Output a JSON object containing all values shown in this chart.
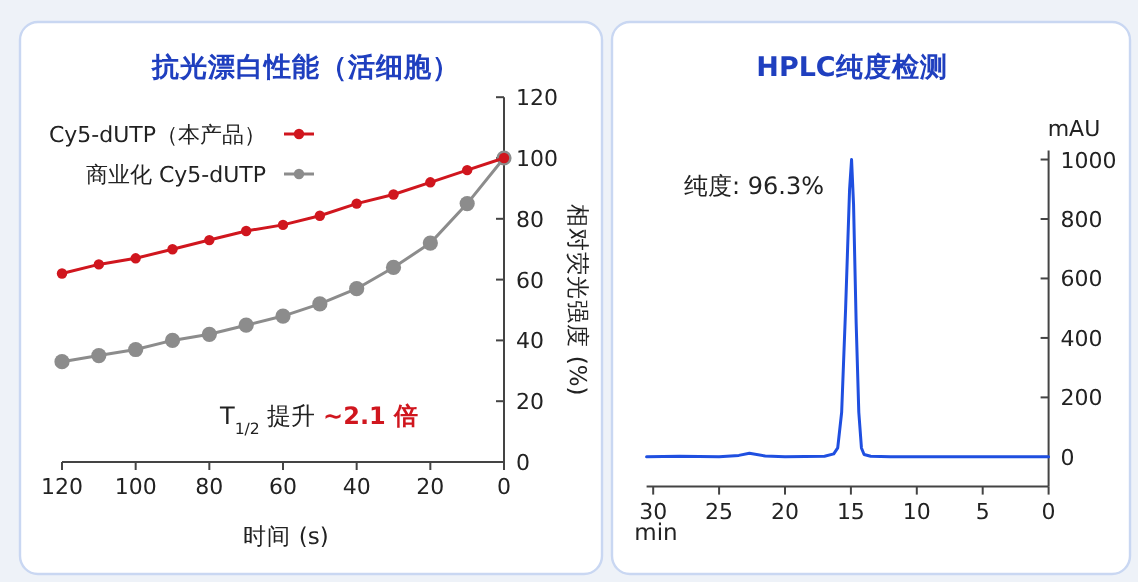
{
  "chart_data": [
    {
      "type": "line",
      "title": "抗光漂白性能（活细胞）",
      "xlabel": "时间 (s)",
      "ylabel": "相对荧光强度 (%)",
      "x": [
        0,
        10,
        20,
        30,
        40,
        50,
        60,
        70,
        80,
        90,
        100,
        110,
        120
      ],
      "xlim": [
        120,
        0
      ],
      "ylim": [
        0,
        120
      ],
      "xticks": [
        0,
        20,
        40,
        60,
        80,
        100,
        120
      ],
      "yticks": [
        0,
        20,
        40,
        60,
        80,
        100,
        120
      ],
      "legend": "top left",
      "marker": "circle",
      "series": [
        {
          "name": "Cy5-dUTP（本产品）",
          "color": "#d0161e",
          "values": [
            100,
            96,
            92,
            88,
            85,
            81,
            78,
            76,
            73,
            70,
            67,
            65,
            62
          ]
        },
        {
          "name": "商业化 Cy5-dUTP",
          "color": "#8c8c8c",
          "values": [
            100,
            85,
            72,
            64,
            57,
            52,
            48,
            45,
            42,
            40,
            37,
            35,
            33
          ]
        }
      ],
      "annotations": [
        "T$_{1/2}$ 提升 **~2.1 倍**"
      ]
    },
    {
      "type": "line",
      "title": "HPLC纯度检测",
      "xlabel": "min",
      "ylabel": "mAU",
      "xlim": [
        30.5,
        0
      ],
      "ylim": [
        -100,
        1030
      ],
      "xticks": [
        0,
        5,
        10,
        15,
        20,
        25,
        30
      ],
      "yticks": [
        0,
        200,
        400,
        600,
        800,
        1000
      ],
      "series": [
        {
          "color": "#1f4fe0",
          "x": [
            30.5,
            28,
            25,
            23.5,
            22.7,
            21.5,
            20,
            17,
            16.3,
            16,
            15.7,
            15.4,
            15.1,
            14.95,
            14.8,
            14.6,
            14.4,
            14.2,
            14,
            13.5,
            12,
            0
          ],
          "values": [
            0,
            2,
            0,
            5,
            12,
            3,
            0,
            2,
            10,
            30,
            150,
            500,
            900,
            1000,
            850,
            450,
            150,
            30,
            8,
            2,
            0,
            0
          ]
        }
      ],
      "annotations": [
        "纯度: 96.3%"
      ]
    }
  ]
}
